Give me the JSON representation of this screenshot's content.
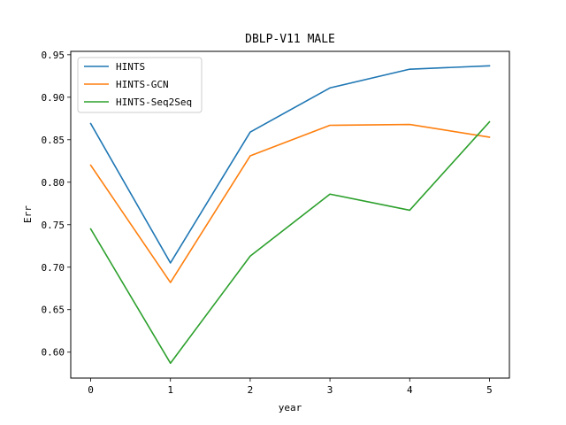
{
  "chart_data": {
    "type": "line",
    "title": "DBLP-V11 MALE",
    "xlabel": "year",
    "ylabel": "Err",
    "x": [
      0,
      1,
      2,
      3,
      4,
      5
    ],
    "xticks": [
      "0",
      "1",
      "2",
      "3",
      "4",
      "5"
    ],
    "yticks": [
      "0.60",
      "0.65",
      "0.70",
      "0.75",
      "0.80",
      "0.85",
      "0.90",
      "0.95"
    ],
    "xlim": [
      -0.25,
      5.25
    ],
    "ylim": [
      0.5695,
      0.954
    ],
    "grid": false,
    "legend_position": "top-left",
    "series": [
      {
        "name": "HINTS",
        "color": "#1f77b4",
        "values": [
          0.869,
          0.705,
          0.859,
          0.911,
          0.933,
          0.937
        ]
      },
      {
        "name": "HINTS-GCN",
        "color": "#ff7f0e",
        "values": [
          0.82,
          0.682,
          0.831,
          0.867,
          0.868,
          0.853
        ]
      },
      {
        "name": "HINTS-Seq2Seq",
        "color": "#2ca02c",
        "values": [
          0.745,
          0.587,
          0.713,
          0.786,
          0.767,
          0.871
        ]
      }
    ]
  }
}
